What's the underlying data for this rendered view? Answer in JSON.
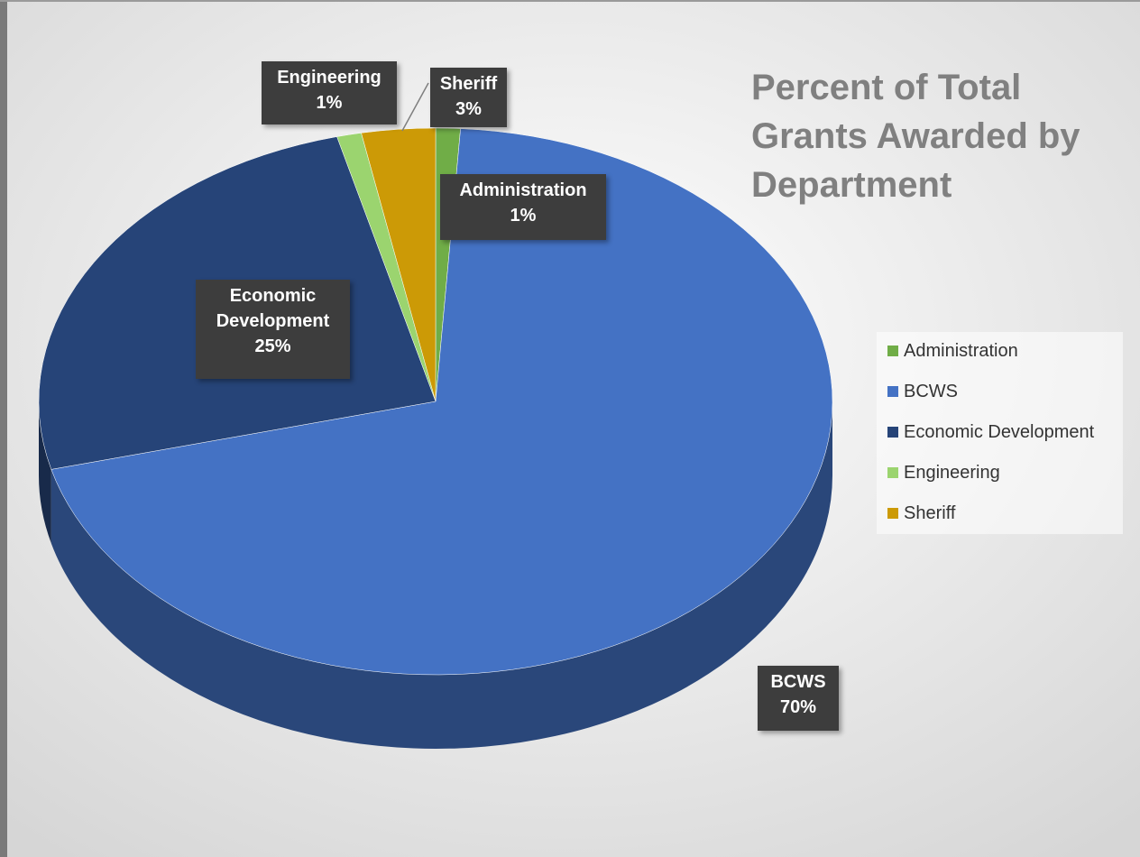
{
  "chart_data": {
    "type": "pie",
    "title": "Percent of Total Grants Awarded by Department",
    "categories": [
      "Administration",
      "BCWS",
      "Economic Development",
      "Engineering",
      "Sheriff"
    ],
    "values": [
      1,
      70,
      25,
      1,
      3
    ],
    "value_labels": [
      "1%",
      "70%",
      "25%",
      "1%",
      "3%"
    ],
    "colors": [
      "#70ad47",
      "#4472c4",
      "#264478",
      "#9bd46f",
      "#cc9a06"
    ],
    "legend": "right"
  }
}
